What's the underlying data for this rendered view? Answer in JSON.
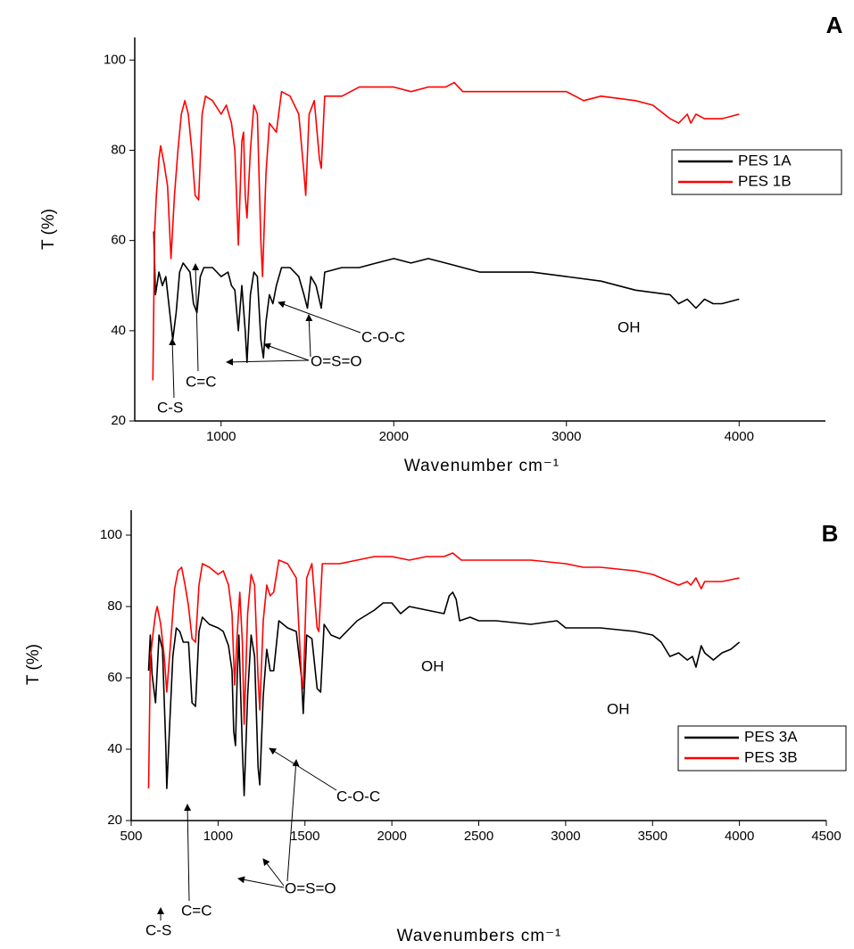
{
  "chart_data": [
    {
      "type": "line",
      "panel_label": "A",
      "xlabel": "Wavenumber cm⁻¹",
      "ylabel": "T (%)",
      "xlim": [
        500,
        4500
      ],
      "ylim": [
        20,
        105
      ],
      "xticks": [
        1000,
        2000,
        3000,
        4000
      ],
      "yticks": [
        20,
        40,
        60,
        80,
        100
      ],
      "series": [
        {
          "name": "PES 1A",
          "color": "#000000",
          "x": [
            610,
            620,
            640,
            660,
            680,
            700,
            720,
            740,
            760,
            780,
            820,
            840,
            860,
            880,
            900,
            950,
            1000,
            1040,
            1060,
            1080,
            1100,
            1110,
            1120,
            1140,
            1150,
            1170,
            1190,
            1210,
            1230,
            1245,
            1260,
            1280,
            1300,
            1320,
            1350,
            1400,
            1450,
            1480,
            1500,
            1520,
            1550,
            1580,
            1600,
            1700,
            1800,
            1900,
            2000,
            2100,
            2200,
            2300,
            2400,
            2500,
            2600,
            2800,
            3000,
            3200,
            3400,
            3600,
            3650,
            3700,
            3750,
            3800,
            3850,
            3900,
            4000
          ],
          "values": [
            62,
            48,
            53,
            50,
            52,
            45,
            38,
            44,
            53,
            55,
            53,
            46,
            44,
            52,
            54,
            54,
            52,
            53,
            50,
            49,
            40,
            45,
            50,
            40,
            33,
            48,
            53,
            52,
            38,
            34,
            42,
            48,
            46,
            50,
            54,
            54,
            52,
            48,
            45,
            52,
            50,
            45,
            53,
            54,
            54,
            55,
            56,
            55,
            56,
            55,
            54,
            53,
            53,
            53,
            52,
            51,
            49,
            48,
            46,
            47,
            45,
            47,
            46,
            46,
            47
          ]
        },
        {
          "name": "PES 1B",
          "color": "#ff0000",
          "x": [
            605,
            615,
            625,
            640,
            650,
            670,
            690,
            710,
            730,
            750,
            770,
            790,
            810,
            830,
            850,
            870,
            890,
            910,
            950,
            1000,
            1030,
            1060,
            1080,
            1100,
            1120,
            1130,
            1140,
            1150,
            1170,
            1190,
            1210,
            1230,
            1240,
            1260,
            1280,
            1300,
            1320,
            1350,
            1400,
            1450,
            1480,
            1490,
            1510,
            1540,
            1570,
            1580,
            1600,
            1700,
            1800,
            1900,
            2000,
            2100,
            2200,
            2300,
            2350,
            2400,
            2600,
            2800,
            3000,
            3100,
            3200,
            3400,
            3500,
            3600,
            3650,
            3700,
            3720,
            3750,
            3800,
            3900,
            4000
          ],
          "values": [
            29,
            62,
            70,
            78,
            81,
            77,
            72,
            56,
            70,
            80,
            88,
            91,
            88,
            80,
            70,
            69,
            88,
            92,
            91,
            88,
            90,
            86,
            80,
            59,
            82,
            84,
            70,
            65,
            80,
            90,
            88,
            60,
            52,
            75,
            86,
            85,
            84,
            93,
            92,
            88,
            75,
            70,
            88,
            91,
            78,
            76,
            92,
            92,
            94,
            94,
            94,
            93,
            94,
            94,
            95,
            93,
            93,
            93,
            93,
            91,
            92,
            91,
            90,
            87,
            86,
            88,
            86,
            88,
            87,
            87,
            88
          ]
        }
      ],
      "annotations": [
        "C-S",
        "C=C",
        "O=S=O",
        "C-O-C",
        "OH"
      ]
    },
    {
      "type": "line",
      "panel_label": "B",
      "xlabel": "Wavenumbers cm⁻¹",
      "ylabel": "T (%)",
      "xlim": [
        500,
        4500
      ],
      "ylim": [
        20,
        107
      ],
      "xticks": [
        500,
        1000,
        1500,
        2000,
        2500,
        3000,
        3500,
        4000,
        4500
      ],
      "yticks": [
        20,
        40,
        60,
        80,
        100
      ],
      "series": [
        {
          "name": "PES 3A",
          "color": "#000000",
          "x": [
            600,
            610,
            620,
            640,
            660,
            680,
            700,
            705,
            720,
            740,
            760,
            780,
            800,
            830,
            850,
            870,
            890,
            910,
            950,
            1000,
            1030,
            1060,
            1080,
            1090,
            1100,
            1110,
            1120,
            1140,
            1150,
            1170,
            1190,
            1210,
            1230,
            1240,
            1260,
            1280,
            1300,
            1320,
            1350,
            1400,
            1450,
            1480,
            1490,
            1510,
            1540,
            1570,
            1590,
            1610,
            1650,
            1700,
            1800,
            1900,
            1950,
            2000,
            2050,
            2100,
            2200,
            2300,
            2330,
            2350,
            2370,
            2390,
            2450,
            2500,
            2600,
            2800,
            2950,
            3000,
            3200,
            3400,
            3500,
            3550,
            3600,
            3650,
            3700,
            3730,
            3750,
            3780,
            3800,
            3850,
            3900,
            3950,
            4000
          ],
          "values": [
            62,
            72,
            61,
            53,
            72,
            68,
            40,
            29,
            45,
            66,
            74,
            73,
            70,
            70,
            53,
            52,
            73,
            77,
            75,
            74,
            73,
            69,
            62,
            45,
            41,
            60,
            72,
            40,
            27,
            55,
            72,
            66,
            35,
            30,
            55,
            68,
            62,
            62,
            76,
            74,
            73,
            60,
            50,
            72,
            71,
            57,
            56,
            75,
            72,
            71,
            76,
            79,
            81,
            81,
            78,
            80,
            79,
            78,
            83,
            84,
            82,
            76,
            77,
            76,
            76,
            75,
            76,
            74,
            74,
            73,
            72,
            70,
            66,
            67,
            65,
            66,
            63,
            69,
            67,
            65,
            67,
            68,
            70
          ]
        },
        {
          "name": "PES 3B",
          "color": "#ff0000",
          "x": [
            600,
            610,
            625,
            640,
            650,
            670,
            690,
            705,
            730,
            750,
            770,
            790,
            810,
            830,
            850,
            870,
            890,
            910,
            950,
            1000,
            1030,
            1060,
            1080,
            1095,
            1110,
            1125,
            1140,
            1150,
            1170,
            1190,
            1210,
            1230,
            1240,
            1260,
            1280,
            1300,
            1320,
            1350,
            1400,
            1450,
            1480,
            1490,
            1510,
            1540,
            1570,
            1580,
            1600,
            1700,
            1800,
            1900,
            2000,
            2100,
            2200,
            2300,
            2350,
            2400,
            2600,
            2800,
            3000,
            3100,
            3200,
            3400,
            3500,
            3600,
            3650,
            3700,
            3720,
            3750,
            3780,
            3800,
            3900,
            4000
          ],
          "values": [
            29,
            65,
            72,
            78,
            80,
            75,
            66,
            56,
            72,
            85,
            90,
            91,
            86,
            80,
            71,
            70,
            86,
            92,
            91,
            89,
            90,
            86,
            78,
            58,
            72,
            84,
            70,
            47,
            78,
            89,
            86,
            60,
            51,
            76,
            86,
            83,
            84,
            93,
            92,
            88,
            60,
            57,
            88,
            92,
            74,
            73,
            92,
            92,
            93,
            94,
            94,
            93,
            94,
            94,
            95,
            93,
            93,
            93,
            92,
            91,
            91,
            90,
            89,
            87,
            86,
            87,
            86,
            88,
            85,
            87,
            87,
            88
          ]
        }
      ],
      "annotations": [
        "C-S",
        "C=C",
        "O=S=O",
        "C-O-C",
        "OH",
        "OH"
      ]
    }
  ]
}
